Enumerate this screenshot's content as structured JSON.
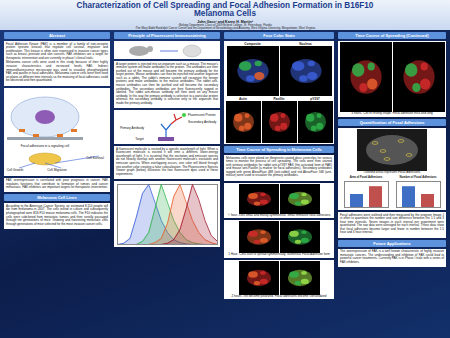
{
  "header": {
    "title": "Characterization of Cell Spreading and Focal Adhesion Formation in B16F10 Melanoma Cells",
    "authors": "John Gass¹ and Karen H. Martin²",
    "affiliations": [
      "¹Biology Department, Class of 2009 Eckerd College, St. Petersburg, Florida",
      "²The Mary Babb Randolph Cancer Center and the Department of Neurobiology and Anatomy, West Virginia University, Morgantown, West Virginia"
    ]
  },
  "abstract": {
    "title": "Abstract",
    "paragraphs": [
      "Focal Adhesion Kinase (FAK) is a member of a family of non-receptor protein tyrosine kinases that regulate cell survival, migration and proliferation. This kinase is often over expressed in invasive cancer types such as breast, prostate and skin cancers. FAK inhibitors are a target for therapeutic intervention and are currently in phase I clinical trials.",
      "Melanoma cancer cells were used in this study because of their highly invasive characteristics and increased levels FAK. Indirect immunofluorescence microscopy was used to visualize phosphorylated FAK and paxillin in focal adhesions. Melanoma cancer cells were then fixed on plates at different time intervals so the maturing of focal adhesions could be observed and then quantitated."
    ],
    "diagram": {
      "caption": "Focal adhesions in a signaling cell",
      "labels": [
        "Cell Growth",
        "Cell Migration",
        "Cell Survival"
      ]
    },
    "closing": "FAK overexpression is correlated with poor prognosis in cancer. FAK regulates functions that contribute to formation of tumors and cancer metastasis. FAK inhibitors are important targets for therapeutic intervention."
  },
  "melanoma": {
    "title": "Melanoma Cell Lines",
    "paragraphs": [
      "According to the American Cancer Society, an estimated 8,110 people will die from melanoma in 2007. The cells tested in culture and subsequently photographed were B16 F10 mouse melanoma cells. The F10 indicates the cells were subcloned from metastatic tumors and then serially passaged through ten generations of mice. Growing and harvesting metastatic cells through generations of mice selected for the most invasive cancer cells."
    ]
  },
  "principle": {
    "title": "Principle of Fluorescent Immunostaining",
    "paragraphs": [
      "A target protein is injected into an organism such as a mouse. The mouse's immune system will make antibodies to the protein. The antibodies are then purified out of the mouse and will become the primary antibody for the target protein. Mouse antibodies can then be injected into another organism such as a rabbit. The rabbit's immune system will recognize the foreign proteins and make antibodies to the mouse antibodies. The rabbit anti-mouse antibodies can then be purified and will become the secondary antibodies. The secondary antibodies are then fluorescently tagged or labeled. The rabbit anti-mouse antibody will then work on any mouse antibody. In this way the primary antibody is selective to a particular protein whereas the secondary antibody is selective only to the organism that made the primary antibody."
    ],
    "diagram_labels": [
      "Fluorescent Protein",
      "Primary Antibody",
      "Secondary Antibody",
      "Target"
    ],
    "fluorescence_text": "A fluorescent molecule is excited by a specific wavelength of light. When a fluorescent molecule is excited it will emit a different, lower-energy wavelength of light. It is essential that the excitation and emission spectra do not heavily overlap with another fluorescent molecule's excitation and emission spectra. When overlapping occurs, one color will bleed through into another color creating a false colocalization. The Fluorescence Spectra Viewer graph (below) illustrates the four fluorescent dyes used in these experiments."
  },
  "four_color": {
    "title": "Four Color Stain",
    "top_labels": [
      "Composite",
      "Nucleus"
    ],
    "bottom_labels": [
      "Actin",
      "Paxillin",
      "pY397"
    ]
  },
  "time_course": {
    "title": "Time Course of Spreading in Melanoma Cells",
    "paragraph": "Melanoma cells were plated on fibronectin-coated glass coverslips for various times to monitor the process of cell spreading. The cells were then stained with primary antibodies for rabbit anti-pY397 FAK (the activated form of FAK) and mouse anti-Paxillin (a marker for focal adhesions). Secondary antibodies tagged with green AlexaFluor 488 (anti-rabbit) and red AlexaFluor 568 (anti-mouse) were used to visualize the primary antibodies.",
    "captions": [
      "½ hour- cells small and mostly symmetrical. Small immature focal adhesions",
      "1 Hour- Cells start to spread symmetrically. Numerous Focal Adhesion form",
      "2 hours- cell become polarized. Focal adhesions become consolidated"
    ]
  },
  "time_course_cont": {
    "title": "Time Course of Spreading (Continued)",
    "caption": "3 hours- Cell in resting shape. Focal adhesion thick and long"
  },
  "quantification": {
    "title": "Quantification of Focal Adhesions",
    "image_caption": "Outlined areas represent Focal Adhesions",
    "paragraph": "Focal adhesions were outlined and then measured by the program Image J in effort to quantitate the number and size difference between the 1.5 and 3 hour time intervals. Seven images in each interval per experiment were quantitated. The raw data were averaged for each interval. These data show that focal adhesions become larger and fewer in number between the 1.5 hour and 3 hour interval."
  },
  "future": {
    "title": "Future Applications",
    "paragraph": "The overexpression of FAK is a well known characteristic of highly invasive metastatic cancers. The understanding and inhibition of FAK could lead to powerful cancer treatments. Currently FAK is in Phase I trials with a series of FAK inhibitors."
  },
  "chart_data": [
    {
      "type": "line",
      "x": [
        350,
        375,
        400,
        425,
        450,
        475,
        500,
        525,
        550,
        575,
        600,
        625,
        650,
        675,
        700,
        725,
        750
      ],
      "xlim": [
        350,
        750
      ],
      "ylim": [
        0,
        100
      ],
      "tick_labels": false,
      "series": [
        {
          "color": "#3b5fd9",
          "values": [
            0,
            2,
            10,
            45,
            85,
            100,
            70,
            40,
            20,
            8,
            3,
            1,
            0,
            0,
            0,
            0,
            0
          ]
        },
        {
          "color": "#2fb34a",
          "values": [
            0,
            0,
            0,
            0,
            5,
            20,
            60,
            100,
            70,
            40,
            20,
            8,
            3,
            1,
            0,
            0,
            0
          ]
        },
        {
          "color": "#e8602c",
          "values": [
            0,
            0,
            0,
            0,
            0,
            0,
            3,
            10,
            35,
            80,
            100,
            70,
            40,
            20,
            8,
            3,
            0
          ]
        },
        {
          "color": "#a0142a",
          "values": [
            0,
            0,
            0,
            0,
            0,
            0,
            0,
            0,
            2,
            8,
            25,
            60,
            100,
            75,
            40,
            15,
            5
          ]
        }
      ]
    },
    {
      "type": "bar",
      "title": "Area of Focal Adhesions",
      "categories": [
        null,
        null
      ],
      "values": [
        2.0,
        3.2
      ],
      "colors": [
        "#3f6fc4",
        "#c0504d"
      ],
      "ylim": [
        0,
        4
      ],
      "tick_labels": false
    },
    {
      "type": "bar",
      "title": "Number of Focal Adhesions",
      "categories": [
        null,
        null
      ],
      "values": [
        40,
        25
      ],
      "colors": [
        "#3f6fc4",
        "#c0504d"
      ],
      "ylim": [
        0,
        50
      ],
      "tick_labels": false
    }
  ]
}
